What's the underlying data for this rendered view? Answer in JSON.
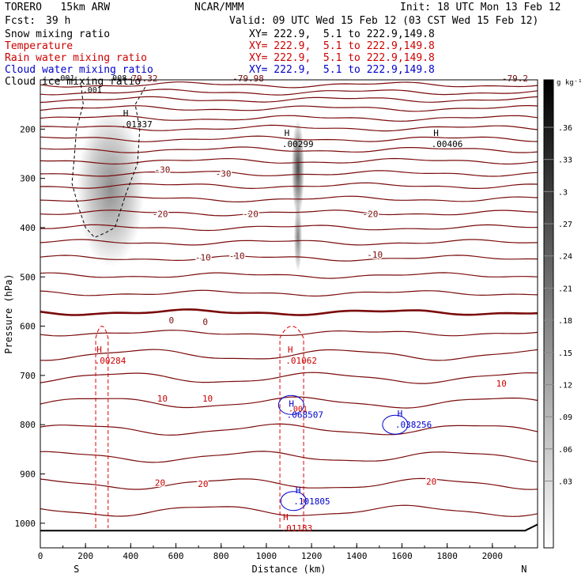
{
  "header": {
    "model": "TORERO   15km ARW",
    "org": "NCAR/MMM",
    "init": "Init: 18 UTC Mon 13 Feb 12",
    "fcst_label": "Fcst:",
    "fcst_value": "39 h",
    "valid": "Valid: 09 UTC Wed 15 Feb 12 (03 CST Wed 15 Feb 12)"
  },
  "fields": [
    {
      "name": "Snow mixing ratio",
      "color": "#000000",
      "xy": ""
    },
    {
      "name": "Temperature",
      "color": "#cc0000",
      "xy": "XY= 222.9,  5.1 to 222.9,149.8"
    },
    {
      "name": "Rain water mixing ratio",
      "color": "#cc0000",
      "xy": "XY= 222.9,  5.1 to 222.9,149.8"
    },
    {
      "name": "Cloud water mixing ratio",
      "color": "#0000cc",
      "xy": "XY= 222.9,  5.1 to 222.9,149.8"
    },
    {
      "name": "Cloud ice mixing ratio",
      "color": "#000000",
      "xy": "XY= 222.9,  5.1 to 222.9,149.8"
    }
  ],
  "chart_data": {
    "type": "contour-cross-section",
    "xlabel": "Distance (km)",
    "ylabel": "Pressure (hPa)",
    "xlim": [
      0,
      2200
    ],
    "ylim": [
      1050,
      100
    ],
    "x_ticks": [
      0,
      200,
      400,
      600,
      800,
      1000,
      1200,
      1400,
      1600,
      1800,
      2000
    ],
    "y_ticks": [
      200,
      300,
      400,
      500,
      600,
      700,
      800,
      900,
      1000
    ],
    "left_end_label": "S",
    "right_end_label": "N",
    "temperature_levels": [
      {
        "p": 110,
        "label": ""
      },
      {
        "p": 125,
        "label": ""
      },
      {
        "p": 140,
        "label": ""
      },
      {
        "p": 158,
        "label": ""
      },
      {
        "p": 178,
        "label": ""
      },
      {
        "p": 198,
        "label": ""
      },
      {
        "p": 220,
        "label": ""
      },
      {
        "p": 242,
        "label": ""
      },
      {
        "p": 265,
        "label": ""
      },
      {
        "p": 290,
        "label": "-30"
      },
      {
        "p": 315,
        "label": ""
      },
      {
        "p": 342,
        "label": ""
      },
      {
        "p": 370,
        "label": "-20"
      },
      {
        "p": 400,
        "label": ""
      },
      {
        "p": 430,
        "label": ""
      },
      {
        "p": 462,
        "label": "-10"
      },
      {
        "p": 497,
        "label": ""
      },
      {
        "p": 533,
        "label": ""
      },
      {
        "p": 572,
        "label": "0",
        "thick": true
      },
      {
        "p": 614,
        "label": ""
      },
      {
        "p": 658,
        "label": ""
      },
      {
        "p": 705,
        "label": ""
      },
      {
        "p": 755,
        "label": "10"
      },
      {
        "p": 810,
        "label": ""
      },
      {
        "p": 865,
        "label": ""
      },
      {
        "p": 920,
        "label": "20"
      },
      {
        "p": 975,
        "label": ""
      }
    ],
    "top_temperature_labels": [
      {
        "x": 450,
        "p": 103,
        "text": "-79.32"
      },
      {
        "x": 920,
        "p": 103,
        "text": "-79.98"
      },
      {
        "x": 2100,
        "p": 103,
        "text": "-79.2"
      }
    ],
    "inline_temperature_labels": [
      {
        "x": 540,
        "p": 282,
        "text": "-30"
      },
      {
        "x": 810,
        "p": 290,
        "text": "-30"
      },
      {
        "x": 530,
        "p": 372,
        "text": "-20"
      },
      {
        "x": 930,
        "p": 372,
        "text": "-20"
      },
      {
        "x": 1460,
        "p": 372,
        "text": "-20"
      },
      {
        "x": 720,
        "p": 460,
        "text": "-10"
      },
      {
        "x": 870,
        "p": 457,
        "text": "-10"
      },
      {
        "x": 1480,
        "p": 455,
        "text": "-10"
      },
      {
        "x": 580,
        "p": 588,
        "text": "0"
      },
      {
        "x": 730,
        "p": 591,
        "text": "0"
      },
      {
        "x": 540,
        "p": 747,
        "text": "10"
      },
      {
        "x": 740,
        "p": 747,
        "text": "10"
      },
      {
        "x": 2040,
        "p": 716,
        "text": "10"
      },
      {
        "x": 530,
        "p": 918,
        "text": "20"
      },
      {
        "x": 720,
        "p": 920,
        "text": "20"
      },
      {
        "x": 1730,
        "p": 915,
        "text": "20"
      }
    ],
    "maxima": [
      {
        "x": 357,
        "p": 190,
        "symbol": "H",
        "value": ".01337",
        "field": "snow"
      },
      {
        "x": 1070,
        "p": 230,
        "symbol": "H",
        "value": ".00299",
        "field": "snow"
      },
      {
        "x": 1730,
        "p": 230,
        "symbol": "H",
        "value": ".00406",
        "field": "snow"
      },
      {
        "x": 240,
        "p": 670,
        "symbol": "H",
        "value": ".00284",
        "field": "rain"
      },
      {
        "x": 1085,
        "p": 670,
        "symbol": "H",
        "value": ".01062",
        "field": "rain"
      },
      {
        "x": 1090,
        "p": 780,
        "symbol": "H",
        "value": ".068507",
        "field": "cloud_water"
      },
      {
        "x": 1570,
        "p": 800,
        "symbol": "H",
        "value": ".038256",
        "field": "cloud_water"
      },
      {
        "x": 1120,
        "p": 955,
        "symbol": "H",
        "value": ".101805",
        "field": "cloud_water"
      },
      {
        "x": 1065,
        "p": 1010,
        "symbol": "H",
        "value": ".01183",
        "field": "rain"
      }
    ],
    "contour_labels": [
      {
        "x": 230,
        "p": 126,
        "text": ".001",
        "field": "ice"
      },
      {
        "x": 1140,
        "p": 773,
        "text": ".001",
        "field": "rain"
      },
      {
        "x": 110,
        "p": 102,
        "text": ".001",
        "field": "ice"
      },
      {
        "x": 340,
        "p": 102,
        "text": ".008",
        "field": "ice"
      }
    ],
    "ice_contour_pressures": [
      {
        "x": 180,
        "p": 110
      },
      {
        "x": 190,
        "p": 150
      },
      {
        "x": 160,
        "p": 200
      },
      {
        "x": 150,
        "p": 260
      },
      {
        "x": 140,
        "p": 310
      },
      {
        "x": 170,
        "p": 360
      },
      {
        "x": 200,
        "p": 400
      },
      {
        "x": 240,
        "p": 420
      },
      {
        "x": 290,
        "p": 410
      },
      {
        "x": 330,
        "p": 400
      },
      {
        "x": 380,
        "p": 330
      },
      {
        "x": 430,
        "p": 270
      },
      {
        "x": 440,
        "p": 200
      },
      {
        "x": 420,
        "p": 150
      },
      {
        "x": 470,
        "p": 110
      }
    ],
    "snow_shading": [
      {
        "x": 310,
        "p": 320,
        "rx": 150,
        "rp": 160,
        "max": 0.22
      },
      {
        "x": 1140,
        "p": 280,
        "rx": 28,
        "rp": 100,
        "max": 0.36
      },
      {
        "x": 1140,
        "p": 420,
        "rx": 18,
        "rp": 70,
        "max": 0.25
      }
    ],
    "colorbar": {
      "unit": "g kg⁻¹",
      "ticks": [
        ".36",
        ".33",
        ".3",
        ".27",
        ".24",
        ".21",
        ".18",
        ".15",
        ".12",
        ".09",
        ".06",
        ".03"
      ]
    }
  }
}
